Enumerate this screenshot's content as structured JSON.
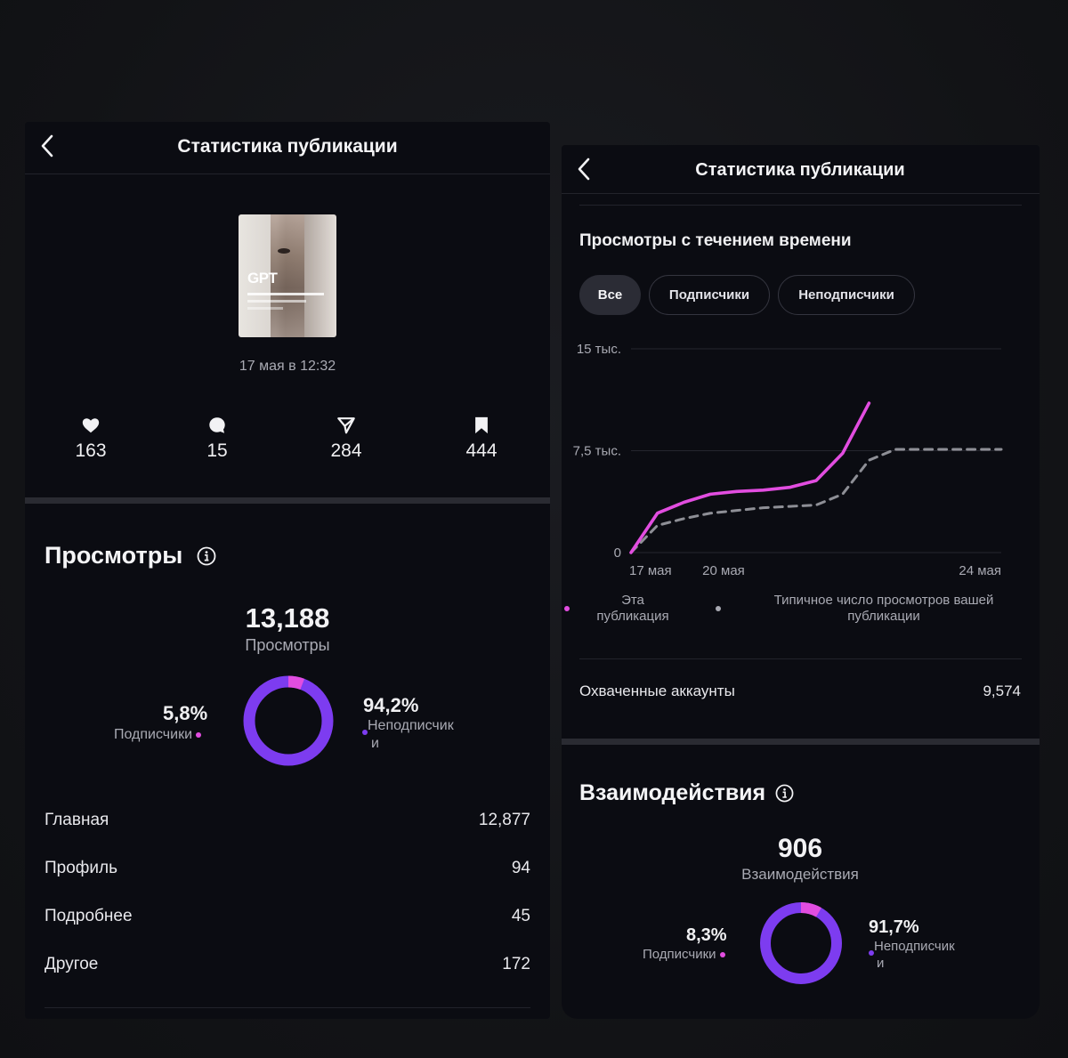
{
  "left": {
    "title": "Статистика публикации",
    "post_date": "17 мая в 12:32",
    "thumbnail": {
      "big": "GPT",
      "lines": [
        "ПРОМТЫ ДЛЯ СОЗДАНИЯ НЕЙРО",
        "ФОТОСЕССИЙ ПОМОЩЬ",
        "ПОДПИСЧИКАМ"
      ]
    },
    "stats": [
      {
        "icon": "heart-icon",
        "value": "163"
      },
      {
        "icon": "comment-icon",
        "value": "15"
      },
      {
        "icon": "send-icon",
        "value": "284"
      },
      {
        "icon": "bookmark-icon",
        "value": "444"
      }
    ],
    "views": {
      "heading": "Просмотры",
      "total": "13,188",
      "total_label": "Просмотры",
      "followers_pct": "5,8%",
      "followers_label": "Подписчики",
      "followers_fraction": 0.058,
      "nonfollowers_pct": "94,2%",
      "nonfollowers_label_1": "Неподписчик",
      "nonfollowers_label_2": "и"
    },
    "sources": [
      {
        "label": "Главная",
        "value": "12,877"
      },
      {
        "label": "Профиль",
        "value": "94"
      },
      {
        "label": "Подробнее",
        "value": "45"
      },
      {
        "label": "Другое",
        "value": "172"
      }
    ]
  },
  "right": {
    "title": "Статистика публикации",
    "chart_section_title": "Просмотры с течением времени",
    "filters": [
      "Все",
      "Подписчики",
      "Неподписчики"
    ],
    "active_filter": "Все",
    "legend": {
      "this_post_1": "Эта",
      "this_post_2": "публикация",
      "typical_1": "Типичное число просмотров вашей",
      "typical_2": "публикации"
    },
    "reached_label": "Охваченные аккаунты",
    "reached_value": "9,574",
    "interactions": {
      "heading": "Взаимодействия",
      "total": "906",
      "total_label": "Взаимодействия",
      "followers_pct": "8,3%",
      "followers_label": "Подписчики",
      "followers_fraction": 0.083,
      "nonfollowers_pct": "91,7%",
      "nonfollowers_label_1": "Неподписчик",
      "nonfollowers_label_2": "и"
    }
  },
  "colors": {
    "followers": "#e24de0",
    "nonfollowers": "#7d3cf0",
    "this_post_line": "#e24de0",
    "typical_line": "#8e8f96"
  },
  "chart_data": {
    "type": "line",
    "title": "Просмотры с течением времени",
    "x_tick_labels": [
      "17 мая",
      "20 мая",
      "24 мая"
    ],
    "y_tick_labels": [
      "0",
      "7,5 тыс.",
      "15 тыс."
    ],
    "ylim": [
      0,
      15000
    ],
    "x": [
      0,
      0.5,
      1,
      1.5,
      2,
      2.5,
      3,
      3.5,
      4,
      4.5,
      5,
      5.5,
      6,
      6.5,
      7
    ],
    "series": [
      {
        "name": "Эта публикация",
        "style": "solid",
        "values": [
          0,
          2900,
          3700,
          4300,
          4500,
          4600,
          4800,
          5300,
          7300,
          11000,
          null,
          null,
          null,
          null,
          null
        ]
      },
      {
        "name": "Типичное число просмотров вашей публикации",
        "style": "dashed",
        "values": [
          0,
          2000,
          2500,
          2900,
          3100,
          3300,
          3400,
          3500,
          4300,
          6800,
          7600,
          7600,
          7600,
          7600,
          7600
        ]
      }
    ],
    "grid": true,
    "legend_position": "bottom"
  }
}
